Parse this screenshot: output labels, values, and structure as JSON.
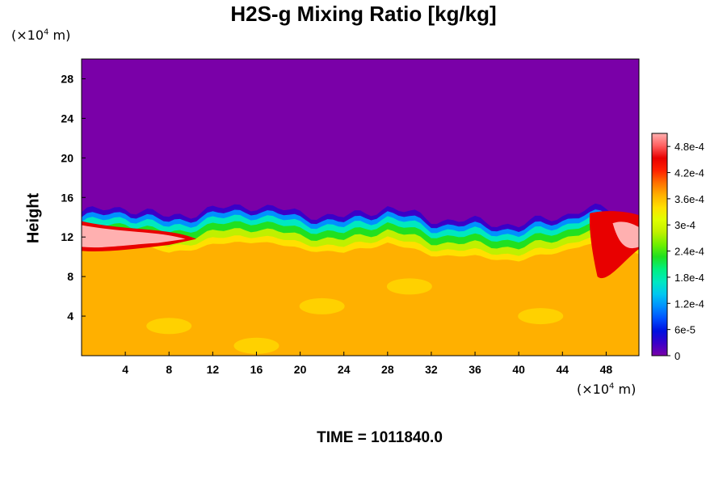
{
  "chart_data": {
    "type": "heatmap",
    "title": "H2S-g Mixing Ratio [kg/kg]",
    "ylabel": "Height",
    "xlabel": "",
    "x_unit": "(×10⁴ m)",
    "y_unit": "(×10⁴ m)",
    "xlim": [
      0,
      51
    ],
    "ylim": [
      0,
      30
    ],
    "x_ticks": [
      4,
      8,
      12,
      16,
      20,
      24,
      28,
      32,
      36,
      40,
      44,
      48
    ],
    "y_ticks": [
      4,
      8,
      12,
      16,
      20,
      24,
      28
    ],
    "colorbar": {
      "ticks": [
        {
          "value": 0,
          "label": "0"
        },
        {
          "value": 6e-05,
          "label": "6e-5"
        },
        {
          "value": 0.00012,
          "label": "1.2e-4"
        },
        {
          "value": 0.00018,
          "label": "1.8e-4"
        },
        {
          "value": 0.00024,
          "label": "2.4e-4"
        },
        {
          "value": 0.0003,
          "label": "3e-4"
        },
        {
          "value": 0.00036,
          "label": "3.6e-4"
        },
        {
          "value": 0.00042,
          "label": "4.2e-4"
        },
        {
          "value": 0.00048,
          "label": "4.8e-4"
        }
      ],
      "min": 0,
      "max": 0.00051,
      "colors": [
        "#7a00a8",
        "#3a00c8",
        "#0010e0",
        "#0050ff",
        "#0090ff",
        "#00c8f0",
        "#00e8c0",
        "#00f080",
        "#20e020",
        "#70f000",
        "#c0f000",
        "#e0ff00",
        "#ffe000",
        "#ffb000",
        "#ff7000",
        "#ff2000",
        "#e80000",
        "#ff6060",
        "#ffb0b0"
      ]
    },
    "field_summary": {
      "upper_layer_value": 0,
      "lower_layer_value": 0.00037,
      "interface_height": [
        14.5,
        15.0,
        14.0,
        14.8,
        15.2,
        14.4,
        14.0,
        15.0,
        13.8,
        13.6,
        13.2,
        14.2,
        14.8,
        14.8,
        14.0
      ],
      "interface_x": [
        0,
        4,
        8,
        12,
        16,
        20,
        24,
        28,
        32,
        36,
        40,
        44,
        46,
        48,
        51
      ]
    }
  },
  "time_label": "TIME = 1011840.0"
}
